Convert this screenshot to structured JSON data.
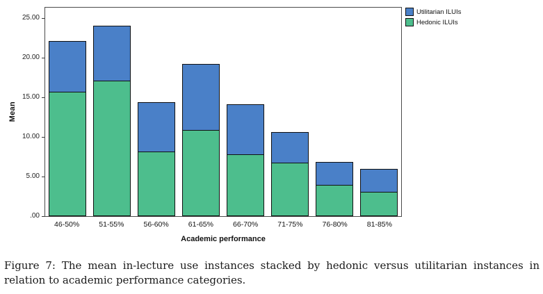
{
  "chart_data": {
    "type": "bar",
    "stacked": true,
    "title": "",
    "xlabel": "Academic performance",
    "ylabel": "Mean",
    "categories": [
      "46-50%",
      "51-55%",
      "56-60%",
      "61-65%",
      "66-70%",
      "71-75%",
      "76-80%",
      "81-85%"
    ],
    "series": [
      {
        "name": "Hedonic ILUIs",
        "color": "#4dbe8d",
        "values": [
          15.6,
          17.0,
          8.1,
          10.8,
          7.7,
          6.7,
          3.9,
          3.0
        ]
      },
      {
        "name": "Utilitarian ILUIs",
        "color": "#4a80c8",
        "values": [
          6.5,
          7.0,
          6.3,
          8.4,
          6.4,
          3.9,
          2.9,
          3.0
        ]
      }
    ],
    "totals": [
      22.1,
      24.0,
      14.4,
      19.2,
      14.1,
      10.6,
      6.8,
      6.0
    ],
    "ylim": [
      0,
      25
    ],
    "ytick_values": [
      0,
      5,
      10,
      15,
      20,
      25
    ],
    "ytick_labels": [
      ".00",
      "5.00",
      "10.00",
      "15.00",
      "20.00",
      "25.00"
    ],
    "grid": false,
    "legend_position": "top-right",
    "legend_order": [
      "Utilitarian ILUIs",
      "Hedonic ILUIs"
    ],
    "bar_border_color": "#101010"
  },
  "caption": {
    "label": "Figure 7:",
    "text": "The mean in-lecture use instances stacked by hedonic versus utilitarian instances in relation to academic performance categories."
  }
}
